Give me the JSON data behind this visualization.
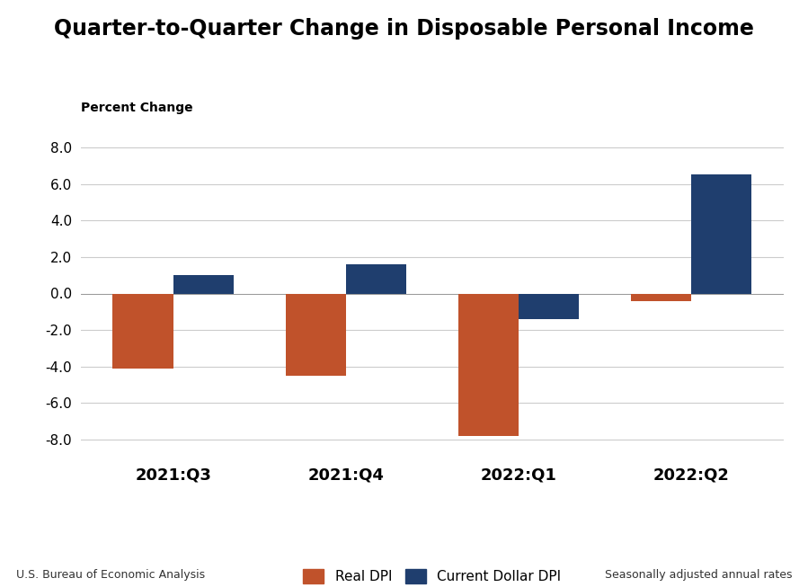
{
  "title": "Quarter-to-Quarter Change in Disposable Personal Income",
  "ylabel": "Percent Change",
  "categories": [
    "2021:Q3",
    "2021:Q4",
    "2022:Q1",
    "2022:Q2"
  ],
  "real_dpi": [
    -4.1,
    -4.5,
    -7.8,
    -0.4
  ],
  "current_dollar_dpi": [
    1.0,
    1.6,
    -1.4,
    6.5
  ],
  "real_dpi_color": "#C0522B",
  "current_dollar_color": "#1F3E6E",
  "ylim": [
    -9.0,
    9.0
  ],
  "yticks": [
    -8.0,
    -6.0,
    -4.0,
    -2.0,
    0.0,
    2.0,
    4.0,
    6.0,
    8.0
  ],
  "bar_width": 0.35,
  "legend_labels": [
    "Real DPI",
    "Current Dollar DPI"
  ],
  "footnote_left": "U.S. Bureau of Economic Analysis",
  "footnote_right": "Seasonally adjusted annual rates",
  "background_color": "#FFFFFF",
  "title_fontsize": 17,
  "axis_label_fontsize": 10,
  "tick_fontsize": 11,
  "legend_fontsize": 11,
  "footnote_fontsize": 9,
  "category_fontsize": 13
}
